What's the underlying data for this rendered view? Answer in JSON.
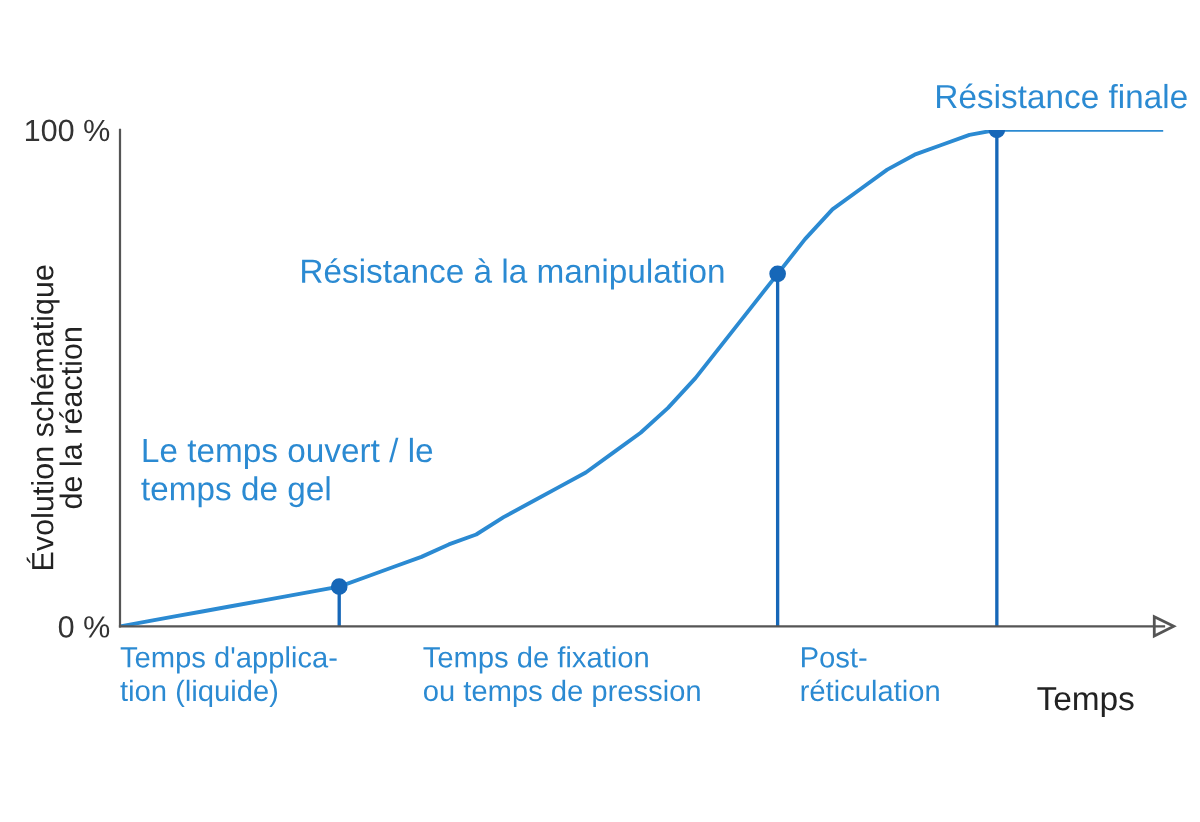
{
  "chart_data": {
    "type": "line",
    "xlabel": "Temps",
    "ylabel": "Évolution schématique\nde la réaction",
    "categories": [
      null,
      null,
      null,
      null,
      null,
      null,
      null,
      null,
      null,
      null,
      null,
      null,
      null,
      null,
      null,
      null,
      null,
      null,
      null,
      null,
      null,
      null,
      null,
      null,
      null,
      null,
      null,
      null,
      null,
      null,
      null,
      null,
      null,
      null,
      null,
      null,
      null,
      null,
      null
    ],
    "series": [
      {
        "color": "#2b8ad2",
        "values": [
          0,
          1,
          2,
          3,
          4,
          5,
          6,
          7,
          8,
          10,
          12,
          14,
          16.5,
          18.5,
          22,
          25,
          28,
          31,
          35,
          39,
          44,
          50,
          57,
          64,
          71,
          78,
          84,
          88,
          92,
          95,
          97,
          99,
          100,
          100,
          100,
          100,
          100,
          100,
          100
        ]
      },
      {
        "type": "lollipop",
        "color": "#1667b8",
        "marker": "circle",
        "values": [
          null,
          null,
          null,
          null,
          null,
          null,
          null,
          null,
          8,
          null,
          null,
          null,
          null,
          null,
          null,
          null,
          null,
          null,
          null,
          null,
          null,
          null,
          null,
          null,
          71,
          null,
          null,
          null,
          null,
          null,
          null,
          null,
          100,
          null,
          null,
          null,
          null,
          null,
          null
        ]
      }
    ],
    "ylim": [
      0,
      100
    ],
    "yticks": [
      {
        "value": 0,
        "label": "0 %"
      },
      {
        "value": 100,
        "label": "100 %"
      }
    ],
    "tick_labels": "y",
    "grid": false,
    "legend": false,
    "annotations": [
      "Le temps ouvert / le\ntemps de gel",
      "Résistance à la manipulation",
      "Résistance finale",
      "Temps d'applica-\ntion (liquide)",
      "Temps de fixation\nou temps de pression",
      "Post-\nréticulation"
    ]
  }
}
